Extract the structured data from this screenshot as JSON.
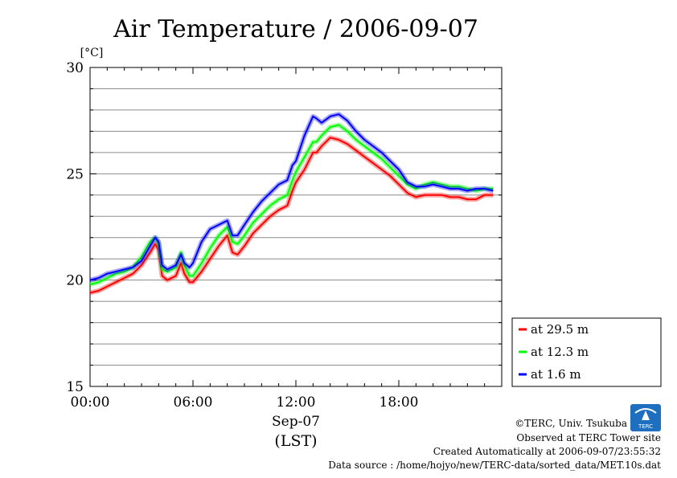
{
  "chart_data": {
    "type": "line",
    "title": "Air Temperature / 2006-09-07",
    "ylabel": "[°C]",
    "xlabel_date": "Sep-07",
    "xlabel_zone": "(LST)",
    "ylim": [
      15,
      30
    ],
    "xlim": [
      0,
      24
    ],
    "yticks": [
      15,
      20,
      25,
      30
    ],
    "xticks": [
      0,
      6,
      12,
      18
    ],
    "xtick_labels": [
      "00:00",
      "06:00",
      "12:00",
      "18:00"
    ],
    "grid": true,
    "legend_position": "bottom-right-outside",
    "series": [
      {
        "name": "at 29.5 m",
        "color": "#ff0000",
        "x": [
          0,
          0.5,
          1,
          1.5,
          2,
          2.5,
          3,
          3.5,
          3.8,
          4,
          4.2,
          4.5,
          5,
          5.3,
          5.5,
          5.8,
          6,
          6.5,
          7,
          7.5,
          8,
          8.3,
          8.6,
          9,
          9.5,
          10,
          10.5,
          11,
          11.5,
          11.8,
          12,
          12.5,
          13,
          13.2,
          13.5,
          14,
          14.5,
          15,
          15.5,
          16,
          16.5,
          17,
          17.5,
          18,
          18.5,
          19,
          19.5,
          20,
          20.5,
          21,
          21.5,
          22,
          22.5,
          23,
          23.5
        ],
        "values": [
          19.4,
          19.5,
          19.7,
          19.9,
          20.1,
          20.3,
          20.7,
          21.3,
          21.7,
          21.4,
          20.2,
          20.0,
          20.2,
          20.8,
          20.3,
          19.9,
          19.9,
          20.4,
          21.0,
          21.6,
          22.1,
          21.3,
          21.2,
          21.6,
          22.2,
          22.6,
          23.0,
          23.3,
          23.5,
          24.2,
          24.6,
          25.2,
          26.0,
          26.0,
          26.3,
          26.7,
          26.6,
          26.4,
          26.1,
          25.8,
          25.5,
          25.2,
          24.9,
          24.5,
          24.1,
          23.9,
          24.0,
          24.0,
          24.0,
          23.9,
          23.9,
          23.8,
          23.8,
          24.0,
          24.0
        ]
      },
      {
        "name": "at 12.3 m",
        "color": "#00ff00",
        "x": [
          0,
          0.5,
          1,
          1.5,
          2,
          2.5,
          3,
          3.5,
          3.8,
          4,
          4.2,
          4.5,
          5,
          5.3,
          5.5,
          5.8,
          6,
          6.5,
          7,
          7.5,
          8,
          8.3,
          8.6,
          9,
          9.5,
          10,
          10.5,
          11,
          11.5,
          11.8,
          12,
          12.5,
          13,
          13.2,
          13.5,
          14,
          14.5,
          15,
          15.5,
          16,
          16.5,
          17,
          17.5,
          18,
          18.5,
          19,
          19.5,
          20,
          20.5,
          21,
          21.5,
          22,
          22.5,
          23,
          23.5
        ],
        "values": [
          19.8,
          19.9,
          20.1,
          20.3,
          20.4,
          20.6,
          21.1,
          21.8,
          22.0,
          21.7,
          20.5,
          20.4,
          20.6,
          21.3,
          20.7,
          20.2,
          20.2,
          20.8,
          21.5,
          22.1,
          22.5,
          21.8,
          21.7,
          22.1,
          22.7,
          23.1,
          23.5,
          23.8,
          24.0,
          24.7,
          25.1,
          25.8,
          26.5,
          26.5,
          26.8,
          27.2,
          27.3,
          27.0,
          26.6,
          26.3,
          26.0,
          25.7,
          25.3,
          24.9,
          24.5,
          24.3,
          24.5,
          24.6,
          24.5,
          24.4,
          24.4,
          24.3,
          24.2,
          24.3,
          24.3
        ]
      },
      {
        "name": "at 1.6 m",
        "color": "#0000ff",
        "x": [
          0,
          0.5,
          1,
          1.5,
          2,
          2.5,
          3,
          3.5,
          3.8,
          4,
          4.2,
          4.5,
          5,
          5.3,
          5.5,
          5.8,
          6,
          6.5,
          7,
          7.5,
          8,
          8.3,
          8.6,
          9,
          9.5,
          10,
          10.5,
          11,
          11.5,
          11.8,
          12,
          12.5,
          13,
          13.2,
          13.5,
          14,
          14.5,
          15,
          15.5,
          16,
          16.5,
          17,
          17.5,
          18,
          18.5,
          19,
          19.5,
          20,
          20.5,
          21,
          21.5,
          22,
          22.5,
          23,
          23.5
        ],
        "values": [
          20.0,
          20.1,
          20.3,
          20.4,
          20.5,
          20.6,
          20.9,
          21.6,
          22.0,
          21.8,
          20.7,
          20.5,
          20.7,
          21.2,
          20.8,
          20.6,
          20.8,
          21.8,
          22.4,
          22.6,
          22.8,
          22.1,
          22.1,
          22.6,
          23.2,
          23.7,
          24.1,
          24.5,
          24.7,
          25.4,
          25.6,
          26.8,
          27.7,
          27.6,
          27.4,
          27.7,
          27.8,
          27.5,
          27.0,
          26.6,
          26.3,
          26.0,
          25.6,
          25.2,
          24.6,
          24.4,
          24.4,
          24.5,
          24.4,
          24.3,
          24.3,
          24.2,
          24.3,
          24.3,
          24.2
        ]
      }
    ]
  },
  "credits": {
    "copyright": "©TERC, Univ. Tsukuba",
    "observed": "Observed at TERC Tower site",
    "created": "Created Automatically at 2006-09-07/23:55:32",
    "source": "Data source : /home/hojyo/new/TERC-data/sorted_data/MET.10s.dat"
  },
  "logo": {
    "text": "TERC",
    "color": "#1e6fbf"
  }
}
